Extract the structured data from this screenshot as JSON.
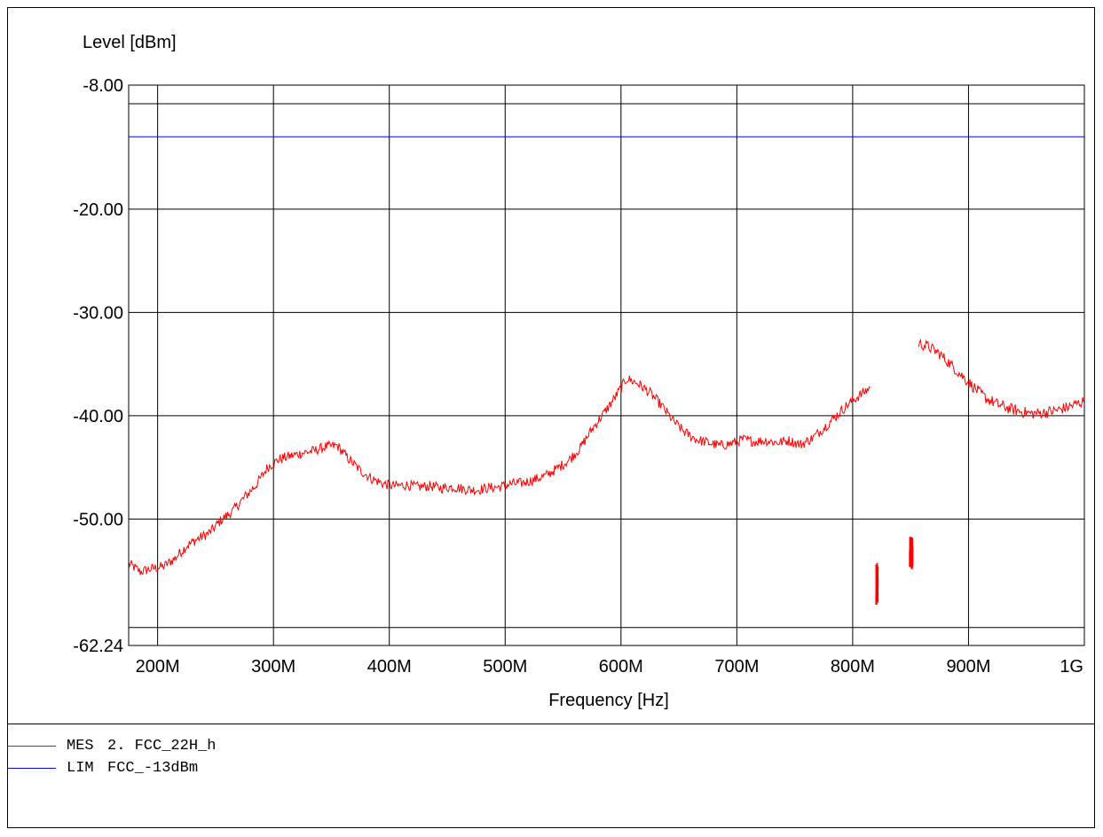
{
  "chart_data": {
    "type": "line",
    "title": "",
    "xlabel": "Frequency [Hz]",
    "ylabel": "Level [dBm]",
    "xlim": [
      175000000,
      1000000000
    ],
    "ylim": [
      -62.24,
      -8.0
    ],
    "grid": true,
    "y_ticks": [
      {
        "value": -8.0,
        "label": "-8.00"
      },
      {
        "value": -20.0,
        "label": "-20.00"
      },
      {
        "value": -30.0,
        "label": "-30.00"
      },
      {
        "value": -40.0,
        "label": "-40.00"
      },
      {
        "value": -50.0,
        "label": "-50.00"
      },
      {
        "value": -62.24,
        "label": "-62.24"
      }
    ],
    "x_ticks": [
      {
        "value": 200000000,
        "label": "200M"
      },
      {
        "value": 300000000,
        "label": "300M"
      },
      {
        "value": 400000000,
        "label": "400M"
      },
      {
        "value": 500000000,
        "label": "500M"
      },
      {
        "value": 600000000,
        "label": "600M"
      },
      {
        "value": 700000000,
        "label": "700M"
      },
      {
        "value": 800000000,
        "label": "800M"
      },
      {
        "value": 900000000,
        "label": "900M"
      },
      {
        "value": 1000000000,
        "label": "1G"
      }
    ],
    "extra_hlines": [
      -9.8,
      -60.5
    ],
    "series": [
      {
        "abbr": "MES",
        "name": "2. FCC_22H_h",
        "color": "#ff0000",
        "segments": [
          {
            "x": [
              175,
              185,
              195,
              205,
              215,
              225,
              235,
              245,
              255,
              265,
              275,
              285,
              295,
              305,
              315,
              325,
              335,
              345,
              355,
              365,
              375,
              385,
              395,
              405,
              415,
              425,
              435,
              445,
              455,
              465,
              475,
              485,
              495,
              505,
              515,
              525,
              535,
              545,
              555,
              565,
              575,
              585,
              595,
              605,
              615,
              625,
              635,
              645,
              655,
              665,
              675,
              685,
              695,
              705,
              715,
              725,
              735,
              745,
              755,
              765,
              775,
              785,
              795,
              805,
              815
            ],
            "y": [
              -54.3,
              -55.1,
              -54.8,
              -54.6,
              -53.8,
              -52.6,
              -51.9,
              -51.3,
              -50.1,
              -49.2,
              -47.9,
              -46.7,
              -45.0,
              -44.2,
              -43.9,
              -43.6,
              -43.4,
              -43.0,
              -42.9,
              -44.2,
              -45.3,
              -46.1,
              -46.6,
              -46.8,
              -46.7,
              -46.9,
              -46.8,
              -47.0,
              -46.9,
              -47.1,
              -47.2,
              -47.0,
              -46.9,
              -46.6,
              -46.5,
              -46.2,
              -45.8,
              -45.1,
              -44.3,
              -43.1,
              -41.3,
              -39.8,
              -38.2,
              -36.4,
              -36.9,
              -37.8,
              -39.0,
              -40.5,
              -41.6,
              -42.3,
              -42.6,
              -42.9,
              -42.7,
              -42.3,
              -42.5,
              -42.4,
              -42.6,
              -42.4,
              -42.8,
              -42.2,
              -41.2,
              -40.1,
              -39.0,
              -38.1,
              -37.3
            ],
            "noise": 0.5
          },
          {
            "x": [
              857,
              865,
              875,
              885,
              895,
              905,
              915,
              925,
              935,
              945,
              955,
              965,
              975,
              985,
              995,
              1000
            ],
            "y": [
              -33.0,
              -33.3,
              -34.0,
              -35.1,
              -36.2,
              -37.3,
              -38.3,
              -38.9,
              -39.3,
              -39.6,
              -39.8,
              -39.7,
              -39.5,
              -39.2,
              -38.8,
              -38.6
            ],
            "noise": 0.55
          }
        ],
        "bursts": [
          {
            "x_start": 820,
            "x_end": 822,
            "y_min": -58.3,
            "y_max": -54.1
          },
          {
            "x_start": 849,
            "x_end": 852,
            "y_min": -54.9,
            "y_max": -51.6
          }
        ]
      },
      {
        "abbr": "LIM",
        "name": "FCC_-13dBm",
        "color": "#0000ff",
        "segments": [
          {
            "x": [
              175,
              1000
            ],
            "y": [
              -13.0,
              -13.0
            ],
            "noise": 0
          }
        ]
      }
    ],
    "x_unit_scale": 1000000
  }
}
